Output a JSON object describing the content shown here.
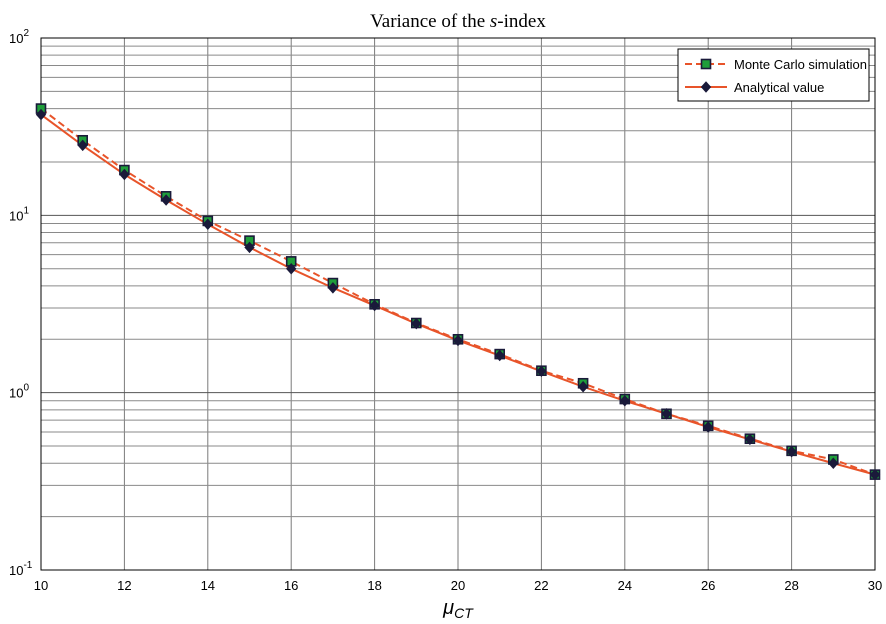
{
  "chart_data": {
    "type": "line",
    "title": {
      "prefix": "Variance of the ",
      "italic": "s",
      "suffix": "-index"
    },
    "xlabel": {
      "main": "μ",
      "sub": "CT"
    },
    "ylabel": "",
    "xlim": [
      10,
      30
    ],
    "ylim": [
      0.1,
      100
    ],
    "yscale": "log",
    "grid": true,
    "legend_position": "top-right",
    "x_ticks": [
      "10",
      "12",
      "14",
      "16",
      "18",
      "20",
      "22",
      "24",
      "26",
      "28",
      "30"
    ],
    "y_ticks": [
      {
        "base": "10",
        "exp": "-1"
      },
      {
        "base": "10",
        "exp": "0"
      },
      {
        "base": "10",
        "exp": "1"
      },
      {
        "base": "10",
        "exp": "2"
      }
    ],
    "x": [
      10,
      11,
      12,
      13,
      14,
      15,
      16,
      17,
      18,
      19,
      20,
      21,
      22,
      23,
      24,
      25,
      26,
      27,
      28,
      29,
      30
    ],
    "series": [
      {
        "name": "Monte Carlo simulation",
        "color": "#e8542a",
        "marker_fill": "#1f9e3a",
        "marker_edge": "#1a1a3a",
        "style": "dashed",
        "marker": "square",
        "values": [
          40,
          26.5,
          18,
          12.8,
          9.3,
          7.2,
          5.5,
          4.15,
          3.15,
          2.47,
          2.0,
          1.65,
          1.33,
          1.13,
          0.92,
          0.76,
          0.65,
          0.55,
          0.47,
          0.42,
          0.345
        ]
      },
      {
        "name": "Analytical value",
        "color": "#e8542a",
        "marker_fill": "#1a1a3a",
        "marker_edge": "#1a1a3a",
        "style": "solid",
        "marker": "diamond",
        "values": [
          37,
          24.8,
          17.0,
          12.2,
          8.9,
          6.6,
          5.0,
          3.9,
          3.1,
          2.45,
          1.97,
          1.62,
          1.32,
          1.08,
          0.9,
          0.76,
          0.64,
          0.545,
          0.465,
          0.4,
          0.345
        ]
      }
    ]
  }
}
